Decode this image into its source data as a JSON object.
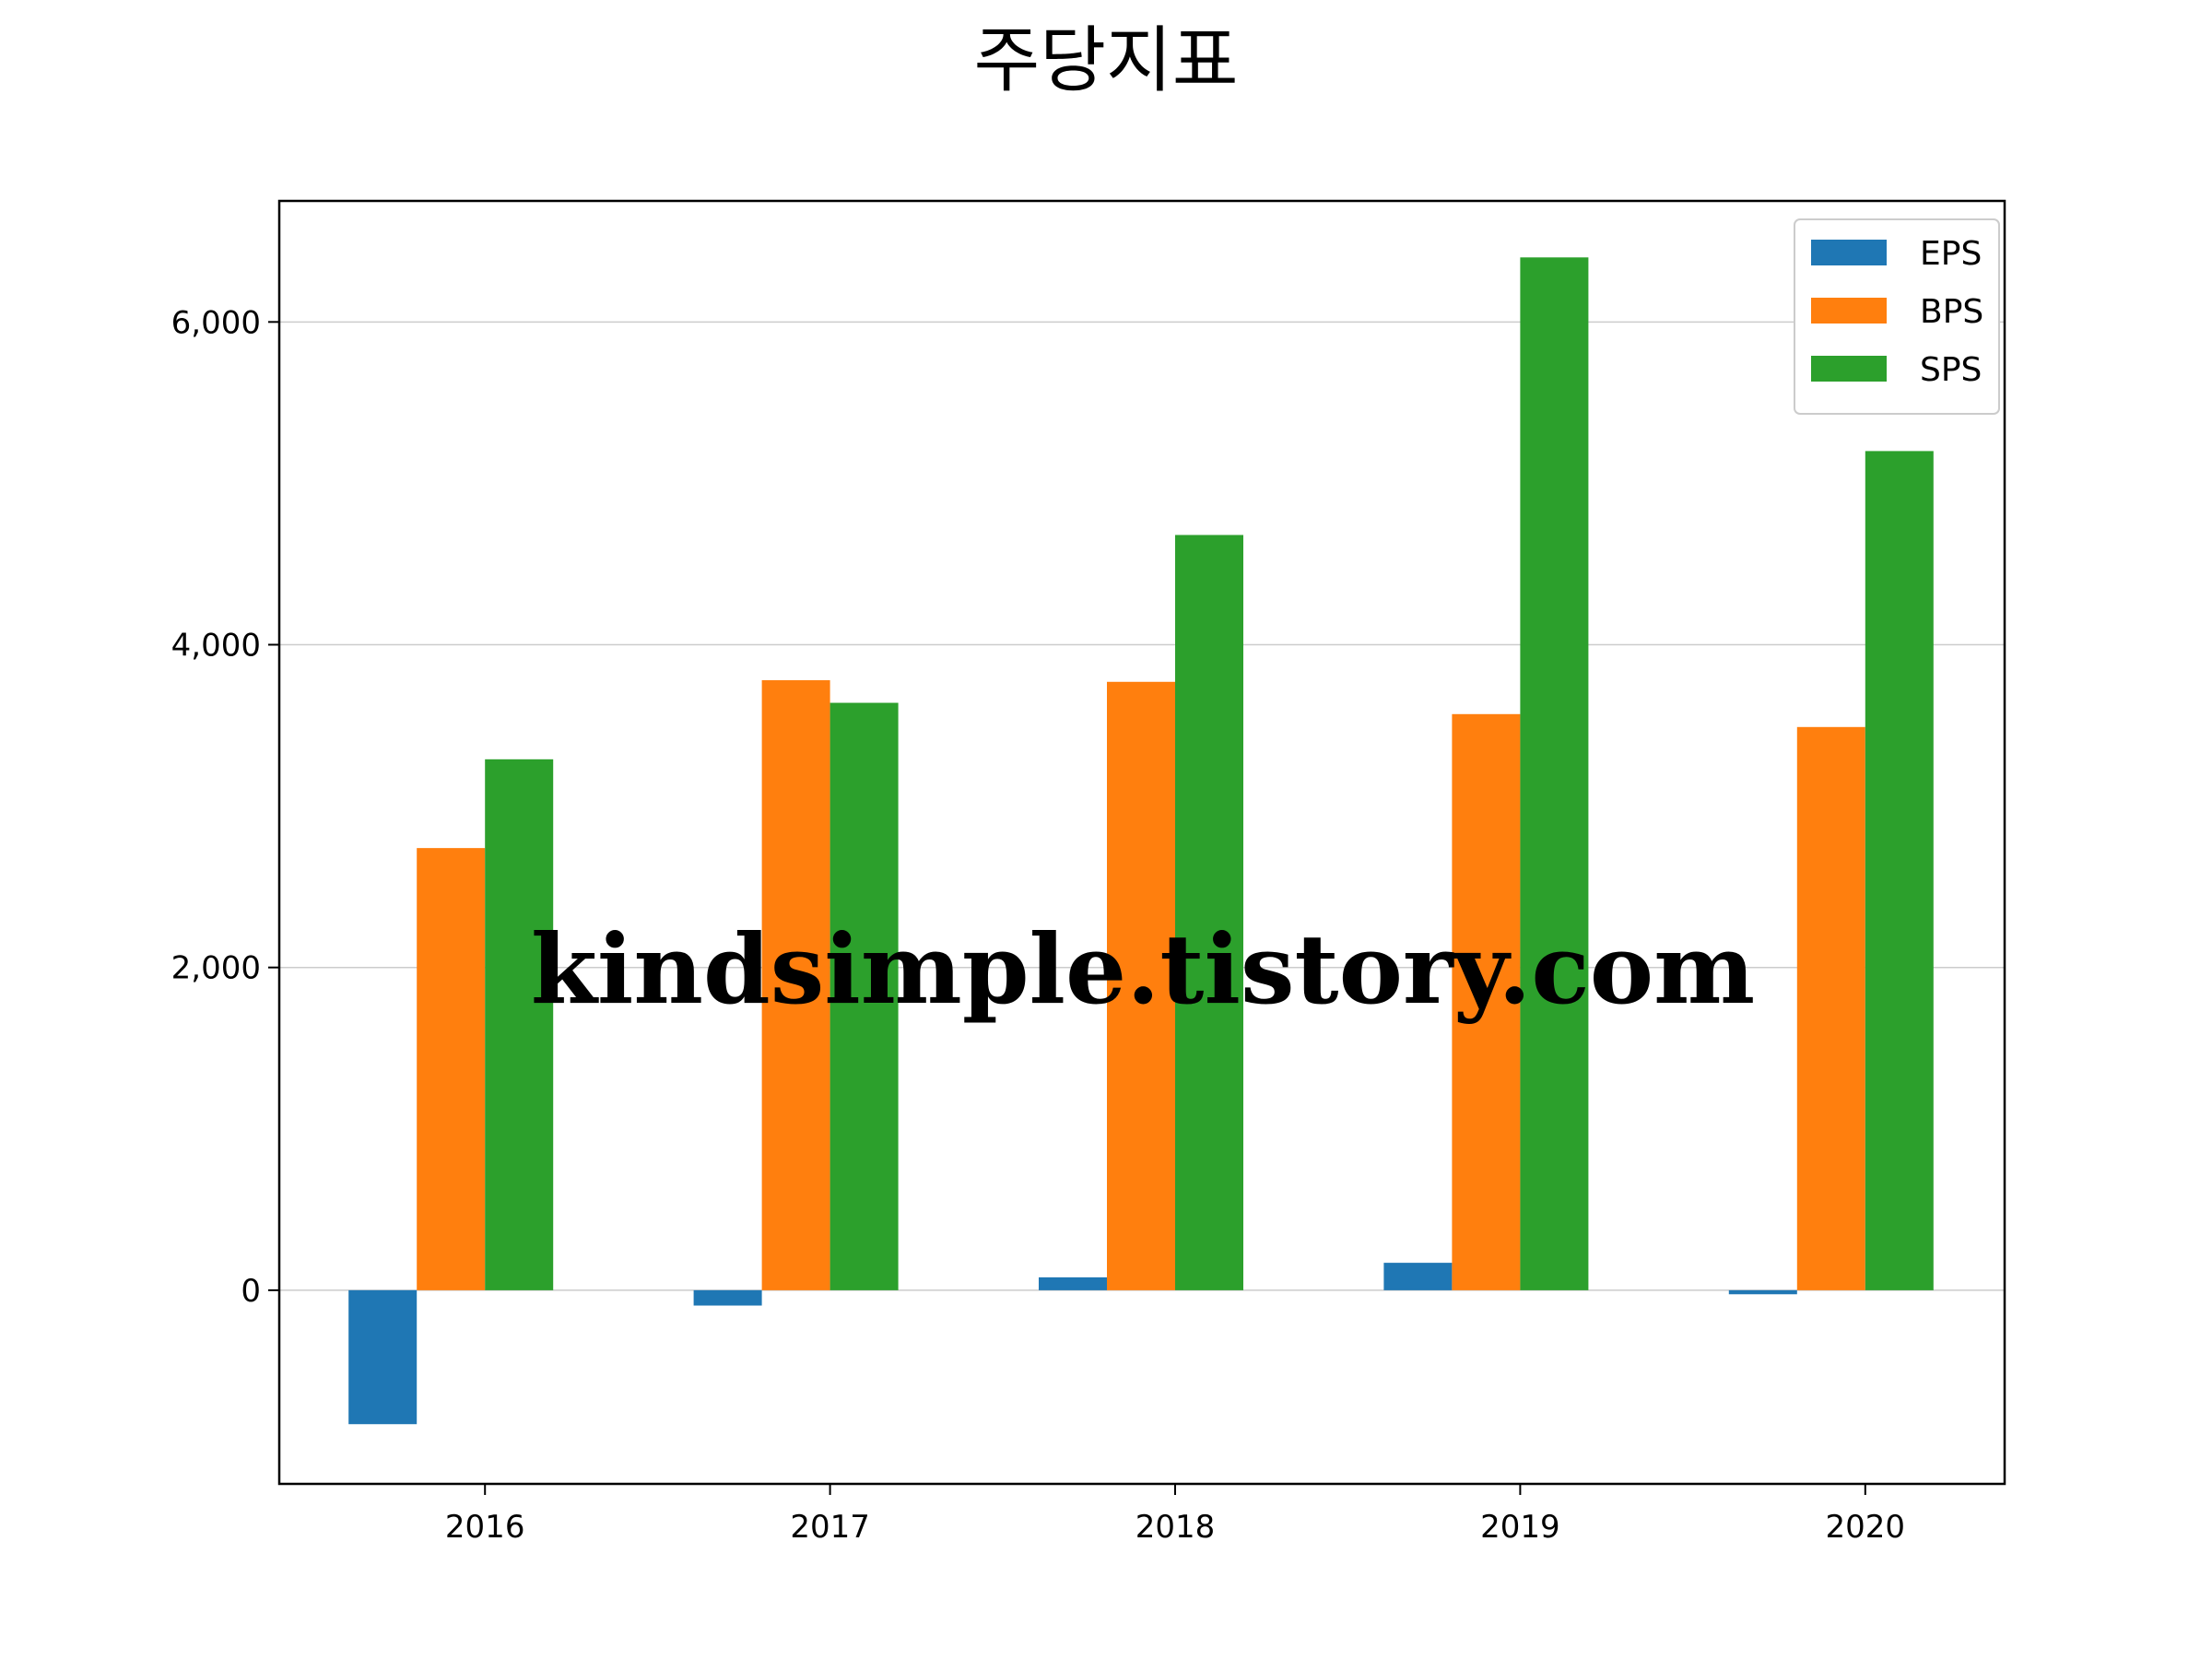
{
  "chart_data": {
    "type": "bar",
    "title": "주당지표",
    "xlabel": "",
    "ylabel": "",
    "categories": [
      "2016",
      "2017",
      "2018",
      "2019",
      "2020"
    ],
    "series": [
      {
        "name": "EPS",
        "color": "#1f77b4",
        "values": [
          -830,
          -95,
          80,
          170,
          -25
        ]
      },
      {
        "name": "BPS",
        "color": "#ff7f0e",
        "values": [
          2740,
          3780,
          3770,
          3570,
          3490
        ]
      },
      {
        "name": "SPS",
        "color": "#2ca02c",
        "values": [
          3290,
          3640,
          4680,
          6400,
          5200
        ]
      }
    ],
    "ylim": [
      -1200,
      6750
    ],
    "yticks": [
      0,
      2000,
      4000,
      6000
    ],
    "ytick_labels": [
      "0",
      "2,000",
      "4,000",
      "6,000"
    ],
    "grid": "horizontal",
    "legend_position": "top-right"
  },
  "watermark": {
    "text": "kindsimple.tistory.com",
    "color": "#e6a4e8"
  }
}
